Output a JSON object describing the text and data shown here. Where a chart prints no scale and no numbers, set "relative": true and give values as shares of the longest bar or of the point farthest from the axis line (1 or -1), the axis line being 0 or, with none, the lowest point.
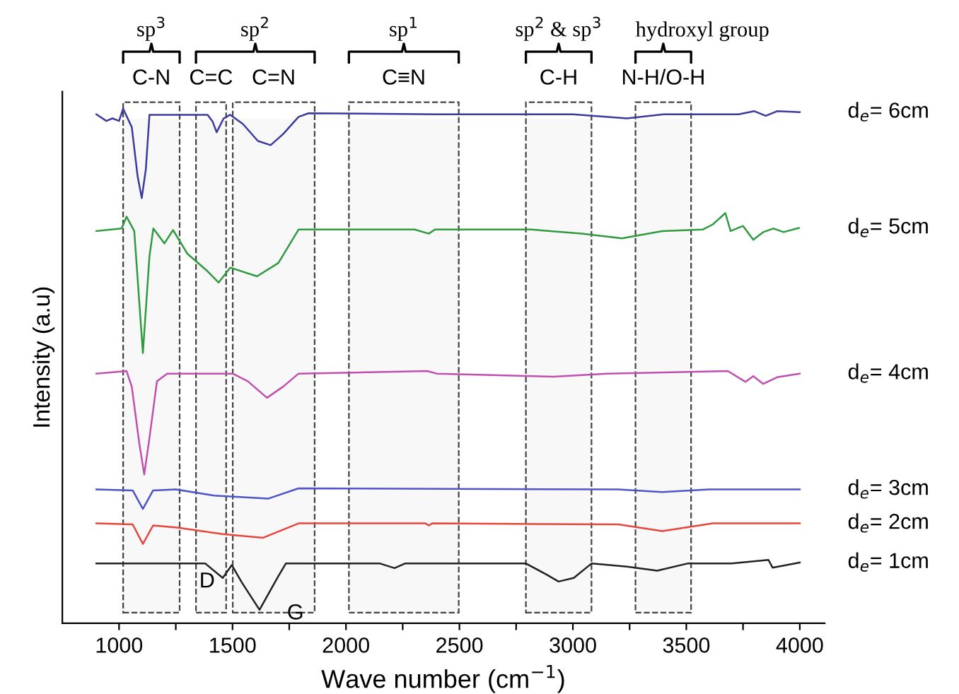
{
  "chart_data": {
    "type": "line",
    "relative": true,
    "xlabel": "Wave number (cm$^{−1}$)",
    "ylabel": "Intensity (a.u)",
    "xlim": [
      750,
      4110
    ],
    "xticks": [
      1000,
      {
        "value": 1250,
        "label": null
      },
      1500,
      {
        "value": 1750,
        "label": null
      },
      2000,
      {
        "value": 2250,
        "label": null
      },
      2500,
      {
        "value": 2750,
        "label": null
      },
      3000,
      {
        "value": 3250,
        "label": null
      },
      3500,
      {
        "value": 3750,
        "label": null
      },
      4000
    ],
    "tick_labels": "x",
    "grid": false,
    "legend": false,
    "marker": "none",
    "line_style": "solid",
    "series": [
      {
        "name": "d$_{e}$= 6cm",
        "color": "#3b3b9f",
        "x": [
          900,
          944,
          971,
          1000,
          1018,
          1056,
          1082,
          1100,
          1118,
          1134,
          1390,
          1412,
          1430,
          1461,
          1490,
          1546,
          1612,
          1668,
          1724,
          1791,
          1835,
          2400,
          3000,
          3238,
          3400,
          3730,
          3800,
          3850,
          3900,
          4000
        ],
        "values": [
          0.989,
          0.976,
          0.981,
          0.976,
          1.0,
          0.964,
          0.868,
          0.826,
          0.882,
          0.988,
          0.988,
          0.975,
          0.954,
          0.981,
          0.988,
          0.97,
          0.937,
          0.929,
          0.951,
          0.984,
          0.991,
          0.989,
          0.989,
          0.981,
          0.989,
          0.989,
          0.995,
          0.986,
          0.995,
          0.993
        ]
      },
      {
        "name": "d$_{e}$= 5cm",
        "color": "#2f9a3f",
        "x": [
          900,
          1011,
          1033,
          1067,
          1105,
          1134,
          1151,
          1200,
          1238,
          1301,
          1390,
          1439,
          1490,
          1608,
          1702,
          1791,
          2303,
          2365,
          2392,
          2815,
          3038,
          3216,
          3394,
          3572,
          3617,
          3672,
          3695,
          3750,
          3795,
          3839,
          3884,
          3929,
          3996
        ],
        "values": [
          0.762,
          0.767,
          0.79,
          0.762,
          0.525,
          0.713,
          0.767,
          0.738,
          0.764,
          0.718,
          0.684,
          0.662,
          0.691,
          0.674,
          0.7,
          0.765,
          0.765,
          0.757,
          0.765,
          0.765,
          0.757,
          0.748,
          0.762,
          0.765,
          0.775,
          0.797,
          0.762,
          0.772,
          0.745,
          0.76,
          0.767,
          0.76,
          0.768
        ]
      },
      {
        "name": "d$_{e}$= 4cm",
        "color": "#c04fb0",
        "x": [
          900,
          1033,
          1056,
          1089,
          1111,
          1134,
          1167,
          1212,
          1501,
          1568,
          1652,
          1724,
          1791,
          2358,
          2400,
          2915,
          3150,
          3683,
          3761,
          3795,
          3839,
          3900,
          4000
        ],
        "values": [
          0.485,
          0.49,
          0.46,
          0.35,
          0.289,
          0.36,
          0.47,
          0.485,
          0.485,
          0.47,
          0.438,
          0.46,
          0.485,
          0.49,
          0.485,
          0.479,
          0.485,
          0.49,
          0.469,
          0.48,
          0.465,
          0.478,
          0.485
        ]
      },
      {
        "name": "d$_{e}$= 3cm",
        "color": "#4d55c8",
        "x": [
          900,
          1060,
          1105,
          1150,
          1250,
          1420,
          1657,
          1791,
          3200,
          3394,
          3600,
          4000
        ],
        "values": [
          0.26,
          0.258,
          0.222,
          0.258,
          0.26,
          0.248,
          0.242,
          0.262,
          0.26,
          0.255,
          0.26,
          0.26
        ]
      },
      {
        "name": "d$_{e}$= 2cm",
        "color": "#e8463a",
        "x": [
          900,
          1060,
          1105,
          1150,
          1256,
          1457,
          1635,
          1791,
          2350,
          2365,
          2380,
          3200,
          3394,
          3617,
          4000
        ],
        "values": [
          0.194,
          0.192,
          0.154,
          0.19,
          0.186,
          0.173,
          0.166,
          0.194,
          0.194,
          0.19,
          0.194,
          0.192,
          0.179,
          0.194,
          0.194
        ]
      },
      {
        "name": "d$_{e}$= 1cm",
        "color": "#222222",
        "x": [
          900,
          1380,
          1457,
          1497,
          1540,
          1619,
          1700,
          1735,
          2150,
          2214,
          2260,
          2793,
          2882,
          2937,
          3004,
          3082,
          3238,
          3372,
          3505,
          3700,
          3862,
          3880,
          4000
        ],
        "values": [
          0.116,
          0.116,
          0.088,
          0.113,
          0.08,
          0.026,
          0.09,
          0.116,
          0.116,
          0.107,
          0.116,
          0.116,
          0.095,
          0.081,
          0.088,
          0.116,
          0.11,
          0.102,
          0.116,
          0.116,
          0.123,
          0.108,
          0.118
        ]
      }
    ],
    "bands": [
      {
        "axis": "x",
        "from": 1018,
        "to": 1267,
        "label": "C-N"
      },
      {
        "axis": "x",
        "from": 1339,
        "to": 1472,
        "label": "C=C"
      },
      {
        "axis": "x",
        "from": 1501,
        "to": 1862,
        "label": "C=N"
      },
      {
        "axis": "x",
        "from": 2013,
        "to": 2497,
        "label": "C≡N"
      },
      {
        "axis": "x",
        "from": 2793,
        "to": 3082,
        "label": "C-H"
      },
      {
        "axis": "x",
        "from": 3276,
        "to": 3521,
        "label": "N-H/O-H"
      }
    ],
    "annotations": [
      "sp$^{3}$",
      "sp$^{2}$",
      "sp$^{1}$",
      "sp$^{2}$ & sp$^{3}$",
      "hydroxyl group",
      {
        "text": "D",
        "x": 1457,
        "y": 0.088
      },
      {
        "text": "G",
        "x": 1619,
        "y": 0.026
      }
    ]
  }
}
